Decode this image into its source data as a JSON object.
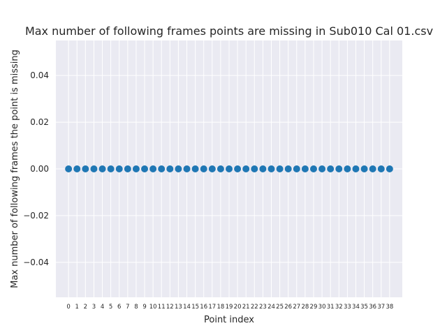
{
  "chart_data": {
    "type": "scatter",
    "title": "Max number of following frames points are missing in Sub010 Cal 01.csv",
    "xlabel": "Point index",
    "ylabel": "Max number of following frames the point is missing",
    "x": [
      0,
      1,
      2,
      3,
      4,
      5,
      6,
      7,
      8,
      9,
      10,
      11,
      12,
      13,
      14,
      15,
      16,
      17,
      18,
      19,
      20,
      21,
      22,
      23,
      24,
      25,
      26,
      27,
      28,
      29,
      30,
      31,
      32,
      33,
      34,
      35,
      36,
      37,
      38
    ],
    "y": [
      0,
      0,
      0,
      0,
      0,
      0,
      0,
      0,
      0,
      0,
      0,
      0,
      0,
      0,
      0,
      0,
      0,
      0,
      0,
      0,
      0,
      0,
      0,
      0,
      0,
      0,
      0,
      0,
      0,
      0,
      0,
      0,
      0,
      0,
      0,
      0,
      0,
      0,
      0
    ],
    "xticks": [
      "0",
      "1",
      "2",
      "3",
      "4",
      "5",
      "6",
      "7",
      "8",
      "9",
      "10",
      "11",
      "12",
      "13",
      "14",
      "15",
      "16",
      "17",
      "18",
      "19",
      "20",
      "21",
      "22",
      "23",
      "24",
      "25",
      "26",
      "27",
      "28",
      "29",
      "30",
      "31",
      "32",
      "33",
      "34",
      "35",
      "36",
      "37",
      "38"
    ],
    "yticks": [
      "−0.04",
      "−0.02",
      "0.00",
      "0.02",
      "0.04"
    ],
    "ytick_values": [
      -0.04,
      -0.02,
      0,
      0.02,
      0.04
    ],
    "ylim": [
      -0.055,
      0.055
    ],
    "xlim": [
      -1.5,
      39.5
    ],
    "grid": true,
    "colors": {
      "background": "#eaeaf2",
      "grid": "#ffffff",
      "point": "#1f77b4"
    }
  }
}
